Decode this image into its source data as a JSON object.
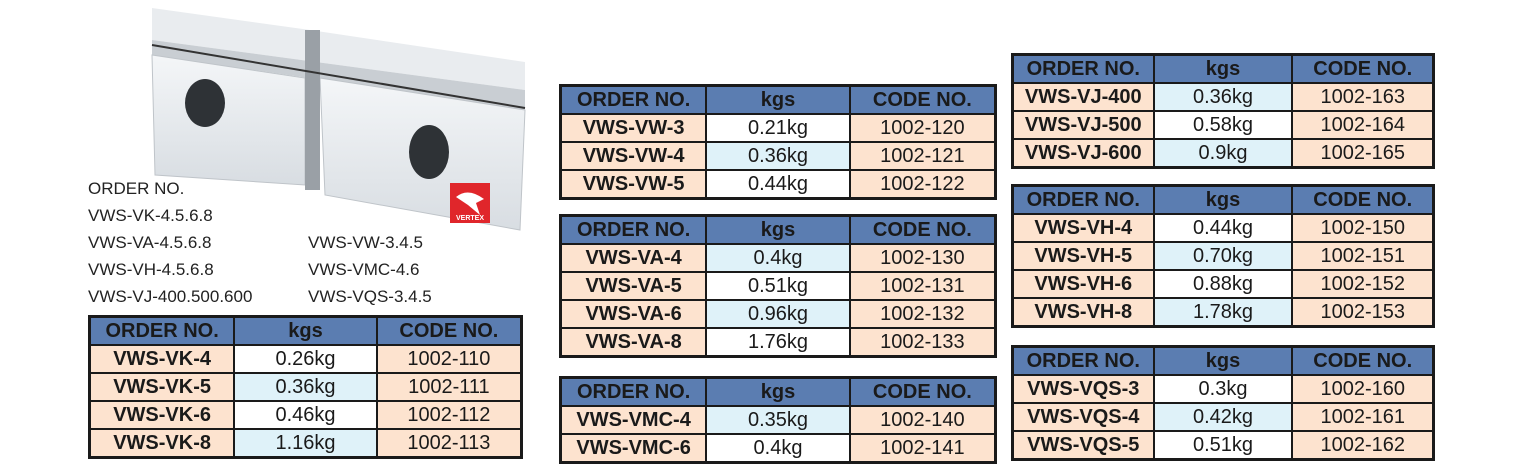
{
  "product_image": {
    "logo_text": "VERTEX",
    "logo_color": "#e0262b"
  },
  "order_list": {
    "heading": "ORDER NO.",
    "left": [
      "VWS-VK-4.5.6.8",
      "VWS-VA-4.5.6.8",
      "VWS-VH-4.5.6.8",
      "VWS-VJ-400.500.600"
    ],
    "right": [
      "VWS-VW-3.4.5",
      "VWS-VMC-4.6",
      "VWS-VQS-3.4.5"
    ]
  },
  "columns": [
    "ORDER NO.",
    "kgs",
    "CODE NO."
  ],
  "colors": {
    "header": "#5b7db1",
    "order_cell": "#fde3cf",
    "kg_shaded": "#dff2f9"
  },
  "tables": [
    {
      "id": "vk",
      "rows": [
        [
          "VWS-VK-4",
          "0.26kg",
          "1002-110",
          false
        ],
        [
          "VWS-VK-5",
          "0.36kg",
          "1002-111",
          true
        ],
        [
          "VWS-VK-6",
          "0.46kg",
          "1002-112",
          false
        ],
        [
          "VWS-VK-8",
          "1.16kg",
          "1002-113",
          true
        ]
      ]
    },
    {
      "id": "vw",
      "rows": [
        [
          "VWS-VW-3",
          "0.21kg",
          "1002-120",
          false
        ],
        [
          "VWS-VW-4",
          "0.36kg",
          "1002-121",
          true
        ],
        [
          "VWS-VW-5",
          "0.44kg",
          "1002-122",
          false
        ]
      ]
    },
    {
      "id": "va",
      "rows": [
        [
          "VWS-VA-4",
          "0.4kg",
          "1002-130",
          true
        ],
        [
          "VWS-VA-5",
          "0.51kg",
          "1002-131",
          false
        ],
        [
          "VWS-VA-6",
          "0.96kg",
          "1002-132",
          true
        ],
        [
          "VWS-VA-8",
          "1.76kg",
          "1002-133",
          false
        ]
      ]
    },
    {
      "id": "vmc",
      "rows": [
        [
          "VWS-VMC-4",
          "0.35kg",
          "1002-140",
          true
        ],
        [
          "VWS-VMC-6",
          "0.4kg",
          "1002-141",
          false
        ]
      ]
    },
    {
      "id": "vj",
      "rows": [
        [
          "VWS-VJ-400",
          "0.36kg",
          "1002-163",
          true
        ],
        [
          "VWS-VJ-500",
          "0.58kg",
          "1002-164",
          false
        ],
        [
          "VWS-VJ-600",
          "0.9kg",
          "1002-165",
          true
        ]
      ]
    },
    {
      "id": "vh",
      "rows": [
        [
          "VWS-VH-4",
          "0.44kg",
          "1002-150",
          false
        ],
        [
          "VWS-VH-5",
          "0.70kg",
          "1002-151",
          true
        ],
        [
          "VWS-VH-6",
          "0.88kg",
          "1002-152",
          false
        ],
        [
          "VWS-VH-8",
          "1.78kg",
          "1002-153",
          true
        ]
      ]
    },
    {
      "id": "vqs",
      "rows": [
        [
          "VWS-VQS-3",
          "0.3kg",
          "1002-160",
          false
        ],
        [
          "VWS-VQS-4",
          "0.42kg",
          "1002-161",
          true
        ],
        [
          "VWS-VQS-5",
          "0.51kg",
          "1002-162",
          false
        ]
      ]
    }
  ]
}
